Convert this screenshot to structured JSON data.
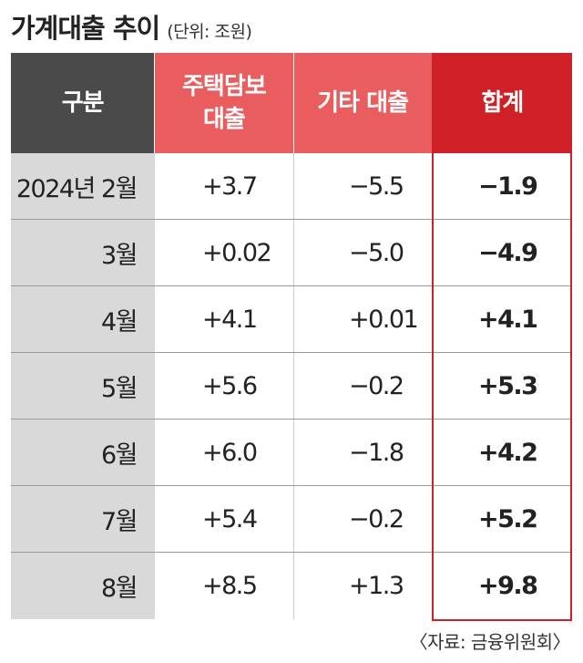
{
  "title": "가계대출 추이",
  "unit": "(단위: 조원)",
  "headers": {
    "category": "구분",
    "mortgage_line1": "주택담보",
    "mortgage_line2": "대출",
    "other": "기타 대출",
    "total": "합계"
  },
  "rows": [
    {
      "label": "2024년 2월",
      "mortgage": "+3.7",
      "other": "−5.5",
      "total": "−1.9"
    },
    {
      "label": "3월",
      "mortgage": "+0.02",
      "other": "−5.0",
      "total": "−4.9"
    },
    {
      "label": "4월",
      "mortgage": "+4.1",
      "other": "+0.01",
      "total": "+4.1"
    },
    {
      "label": "5월",
      "mortgage": "+5.6",
      "other": "−0.2",
      "total": "+5.3"
    },
    {
      "label": "6월",
      "mortgage": "+6.0",
      "other": "−1.8",
      "total": "+4.2"
    },
    {
      "label": "7월",
      "mortgage": "+5.4",
      "other": "−0.2",
      "total": "+5.2"
    },
    {
      "label": "8월",
      "mortgage": "+8.5",
      "other": "+1.3",
      "total": "+9.8"
    }
  ],
  "source": "〈자료: 금융위원회〉",
  "colors": {
    "header_dark": "#4a4a4a",
    "header_red_light": "#ea5d5f",
    "header_red_dark": "#cf2027",
    "label_bg": "#d9d9d9"
  }
}
